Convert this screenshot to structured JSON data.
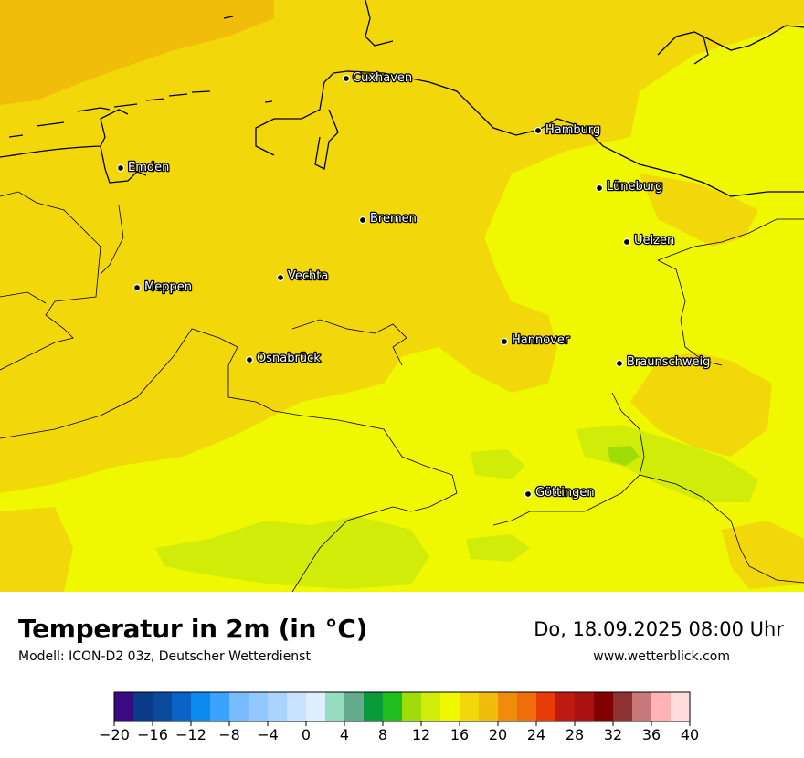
{
  "header": {
    "title": "Temperatur in 2m (in °C)",
    "model": "Modell: ICON-D2 03z, Deutscher Wetterdienst",
    "datetime": "Do, 18.09.2025 08:00 Uhr",
    "website": "www.wetterblick.com"
  },
  "cities": [
    {
      "name": "Cuxhaven"
    },
    {
      "name": "Hamburg"
    },
    {
      "name": "Emden"
    },
    {
      "name": "Lüneburg"
    },
    {
      "name": "Bremen"
    },
    {
      "name": "Uelzen"
    },
    {
      "name": "Vechta"
    },
    {
      "name": "Meppen"
    },
    {
      "name": "Hannover"
    },
    {
      "name": "Osnabrück"
    },
    {
      "name": "Braunschweig"
    },
    {
      "name": "Göttingen"
    }
  ],
  "colorscale": {
    "min": -20,
    "max": 40,
    "step": 2,
    "tick_labels": [
      "−20",
      "−16",
      "−12",
      "−8",
      "−4",
      "0",
      "4",
      "8",
      "12",
      "16",
      "20",
      "24",
      "28",
      "32",
      "36",
      "40"
    ],
    "colors": [
      "#3a0a82",
      "#0a3a8a",
      "#0a4a9a",
      "#0a64c8",
      "#0a8aee",
      "#3aa2ff",
      "#78bcff",
      "#92c8ff",
      "#aad4ff",
      "#c8e2ff",
      "#dceeff",
      "#96dcbe",
      "#64aa8c",
      "#0a9a3a",
      "#1ebe1e",
      "#a0dc0a",
      "#d2ec0a",
      "#f0f800",
      "#f2d80a",
      "#f2bc0a",
      "#f08c0a",
      "#f06e0a",
      "#e83c0a",
      "#be1a12",
      "#aa1212",
      "#820000",
      "#8c3232",
      "#c87878",
      "#ffb4b4",
      "#ffdcdc"
    ]
  },
  "map_colors": {
    "t16": "#f0f800",
    "t18": "#f2d80a",
    "t20": "#f2bc0a",
    "t14": "#d2ec0a",
    "t12": "#a0dc0a"
  }
}
